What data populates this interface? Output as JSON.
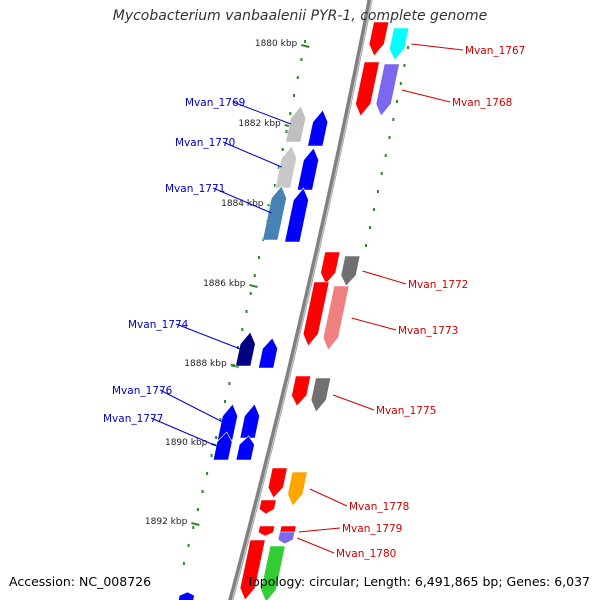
{
  "title": "Mycobacterium vanbaalenii PYR-1, complete genome",
  "accession_text": "Accession: NC_008726",
  "topology_text": "Topology: circular; Length: 6,491,865 bp; Genes: 6,037",
  "colors": {
    "forward_label": "#0000cc",
    "reverse_label": "#d00000",
    "backbone": "#808080",
    "tick": "#2a8a2a"
  },
  "ruler": [
    {
      "kbp": 1880,
      "label": "1880 kbp"
    },
    {
      "kbp": 1882,
      "label": "1882 kbp"
    },
    {
      "kbp": 1884,
      "label": "1884 kbp"
    },
    {
      "kbp": 1886,
      "label": "1886 kbp"
    },
    {
      "kbp": 1888,
      "label": "1888 kbp"
    },
    {
      "kbp": 1890,
      "label": "1890 kbp"
    },
    {
      "kbp": 1892,
      "label": "1892 kbp"
    }
  ],
  "genes": [
    {
      "locus": "Mvan_1767",
      "strand": "reverse",
      "color": "#00ffff",
      "labeled": true
    },
    {
      "locus": "Mvan_1768",
      "strand": "reverse",
      "color": "#7b68ee",
      "labeled": true
    },
    {
      "locus": "Mvan_1769",
      "strand": "forward",
      "color": "#c0c0c0",
      "labeled": true
    },
    {
      "locus": "Mvan_1770",
      "strand": "forward",
      "color": "#c8c8c8",
      "labeled": true
    },
    {
      "locus": "Mvan_1771",
      "strand": "forward",
      "color": "#4682b4",
      "labeled": true
    },
    {
      "locus": "Mvan_1772",
      "strand": "reverse",
      "color": "#707070",
      "labeled": true
    },
    {
      "locus": "Mvan_1773",
      "strand": "reverse",
      "color": "#f08080",
      "labeled": true
    },
    {
      "locus": "Mvan_1774",
      "strand": "forward",
      "color": "#000080",
      "labeled": true
    },
    {
      "locus": "Mvan_1775",
      "strand": "reverse",
      "color": "#707070",
      "labeled": true
    },
    {
      "locus": "Mvan_1776",
      "strand": "forward",
      "color": "#0000ff",
      "labeled": true
    },
    {
      "locus": "Mvan_1777",
      "strand": "forward",
      "color": "#0000ff",
      "labeled": true
    },
    {
      "locus": "Mvan_1778",
      "strand": "reverse",
      "color": "#ffa500",
      "labeled": true
    },
    {
      "locus": "Mvan_1779",
      "strand": "reverse",
      "color": "#ff0000",
      "labeled": true
    },
    {
      "locus": "Mvan_1780",
      "strand": "reverse",
      "color": "#7b68ee",
      "labeled": true
    },
    {
      "locus": "",
      "strand": "reverse",
      "color": "#32cd32",
      "labeled": false
    },
    {
      "locus": "",
      "strand": "forward",
      "color": "#0000ff",
      "labeled": false
    }
  ]
}
